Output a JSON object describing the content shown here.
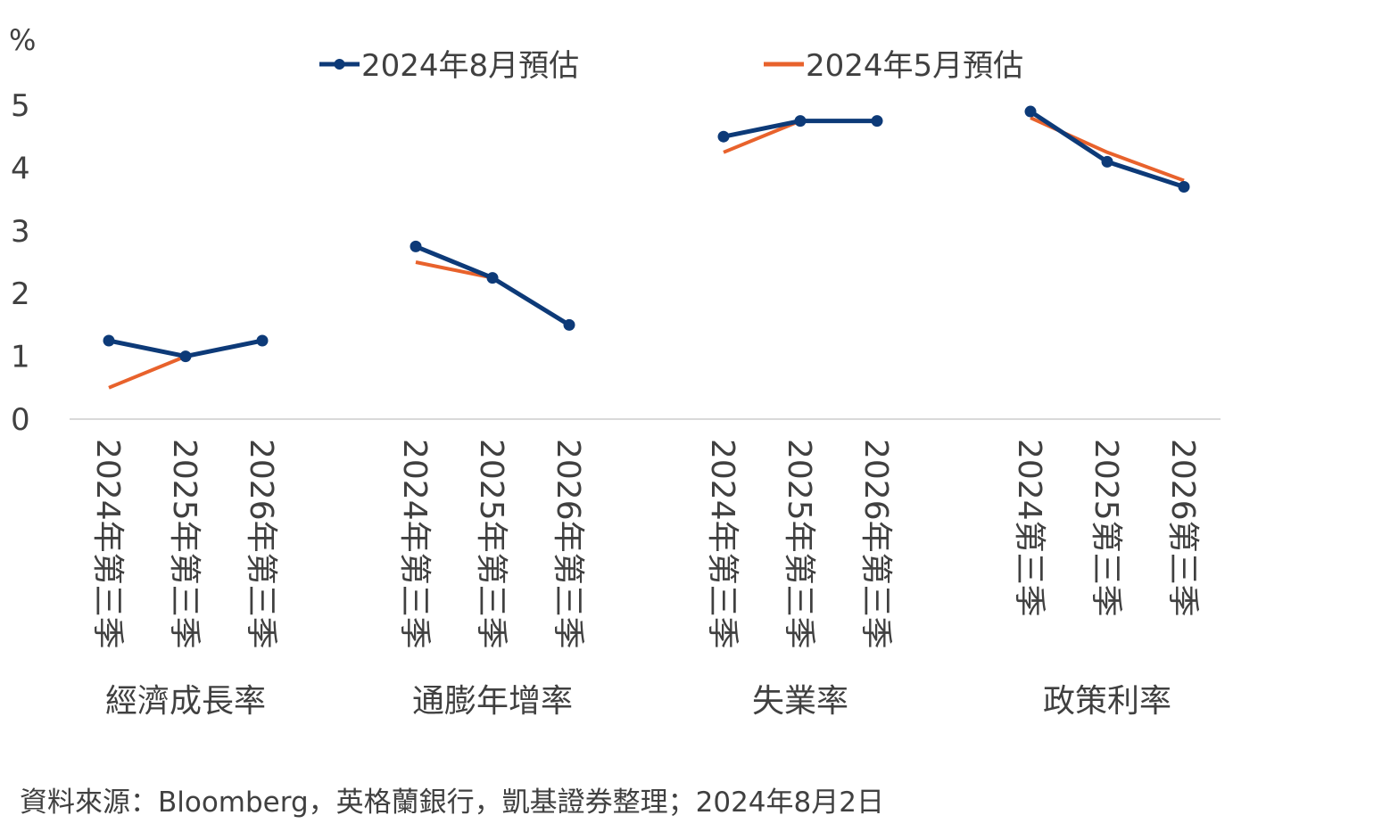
{
  "chart_data": {
    "type": "line",
    "ylabel": "%",
    "ylim": [
      0,
      5
    ],
    "yticks": [
      0,
      1,
      2,
      3,
      4,
      5
    ],
    "grid": false,
    "legend_position": "top",
    "groups": [
      {
        "label": "經濟成長率",
        "categories": [
          "2024年第三季",
          "2025年第三季",
          "2026年第三季"
        ]
      },
      {
        "label": "通膨年增率",
        "categories": [
          "2024年第三季",
          "2025年第三季",
          "2026年第三季"
        ]
      },
      {
        "label": "失業率",
        "categories": [
          "2024年第三季",
          "2025年第三季",
          "2026年第三季"
        ]
      },
      {
        "label": "政策利率",
        "categories": [
          "2024第三季",
          "2025第三季",
          "2026第三季"
        ]
      }
    ],
    "series": [
      {
        "name": "2024年8月預估",
        "color": "#0d3a78",
        "marker": "circle",
        "values": [
          [
            1.25,
            1.0,
            1.25
          ],
          [
            2.75,
            2.25,
            1.5
          ],
          [
            4.5,
            4.75,
            4.75
          ],
          [
            4.9,
            4.1,
            3.7
          ]
        ]
      },
      {
        "name": "2024年5月預估",
        "color": "#e8622c",
        "marker": "none",
        "values": [
          [
            0.5,
            1.0,
            1.25
          ],
          [
            2.5,
            2.25,
            1.5
          ],
          [
            4.25,
            4.75,
            4.75
          ],
          [
            4.8,
            4.25,
            3.8
          ]
        ]
      }
    ]
  },
  "source_note": "資料來源：Bloomberg，英格蘭銀行，凱基證券整理；2024年8月2日"
}
